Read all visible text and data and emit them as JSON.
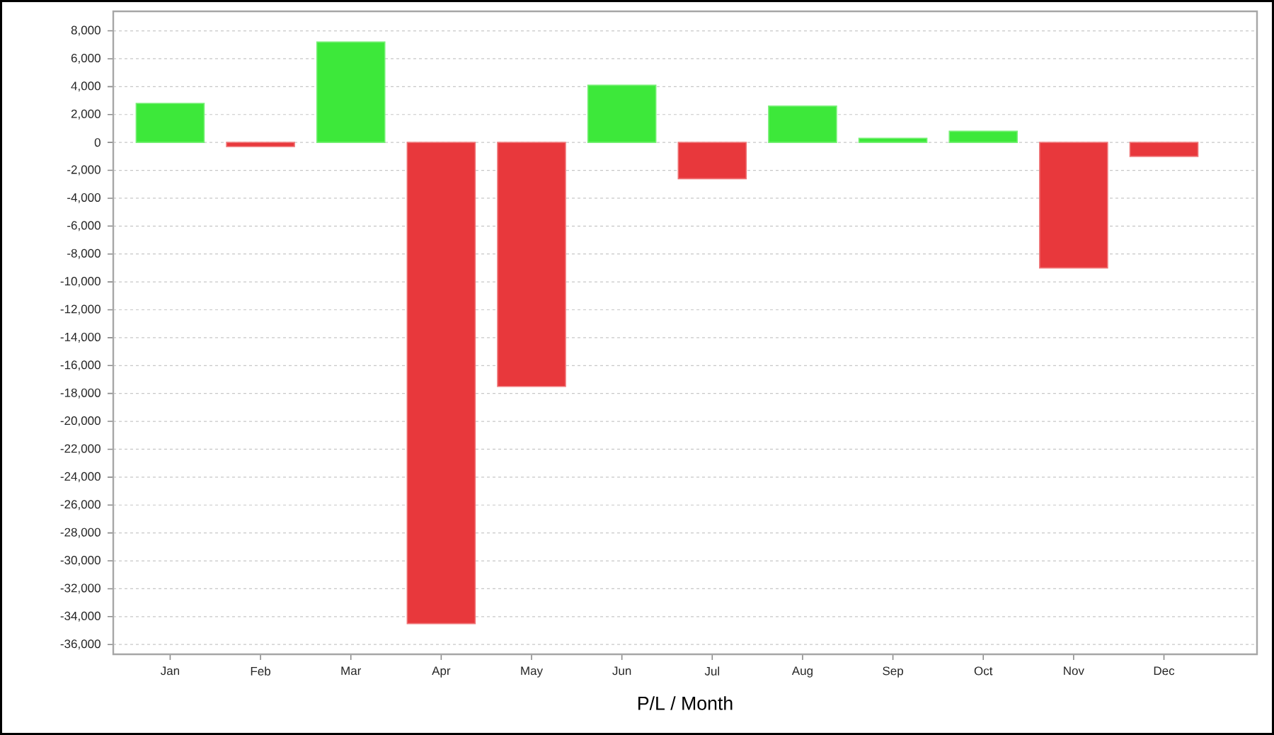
{
  "chart_data": {
    "type": "bar",
    "xlabel": "P/L / Month",
    "categories": [
      "Jan",
      "Feb",
      "Mar",
      "Apr",
      "May",
      "Jun",
      "Jul",
      "Aug",
      "Sep",
      "Oct",
      "Nov",
      "Dec"
    ],
    "values": [
      2800,
      -300,
      7200,
      -34500,
      -17500,
      4100,
      -2600,
      2600,
      300,
      800,
      -9000,
      -1000
    ],
    "colors": [
      "#3de83a",
      "#e8383c",
      "#3de83a",
      "#e8383c",
      "#e8383c",
      "#3de83a",
      "#e8383c",
      "#3de83a",
      "#3de83a",
      "#3de83a",
      "#e8383c",
      "#e8383c"
    ],
    "ylim": [
      -36700,
      9400
    ],
    "yticks": [
      {
        "value": 8000,
        "label": "8,000"
      },
      {
        "value": 6000,
        "label": "6,000"
      },
      {
        "value": 4000,
        "label": "4,000"
      },
      {
        "value": 2000,
        "label": "2,000"
      },
      {
        "value": 0,
        "label": "0"
      },
      {
        "value": -2000,
        "label": "-2,000"
      },
      {
        "value": -4000,
        "label": "-4,000"
      },
      {
        "value": -6000,
        "label": "-6,000"
      },
      {
        "value": -8000,
        "label": "-8,000"
      },
      {
        "value": -10000,
        "label": "-10,000"
      },
      {
        "value": -12000,
        "label": "-12,000"
      },
      {
        "value": -14000,
        "label": "-14,000"
      },
      {
        "value": -16000,
        "label": "-16,000"
      },
      {
        "value": -18000,
        "label": "-18,000"
      },
      {
        "value": -20000,
        "label": "-20,000"
      },
      {
        "value": -22000,
        "label": "-22,000"
      },
      {
        "value": -24000,
        "label": "-24,000"
      },
      {
        "value": -26000,
        "label": "-26,000"
      },
      {
        "value": -28000,
        "label": "-28,000"
      },
      {
        "value": -30000,
        "label": "-30,000"
      },
      {
        "value": -32000,
        "label": "-32,000"
      },
      {
        "value": -34000,
        "label": "-34,000"
      },
      {
        "value": -36000,
        "label": "-36,000"
      }
    ],
    "grid": "y"
  }
}
